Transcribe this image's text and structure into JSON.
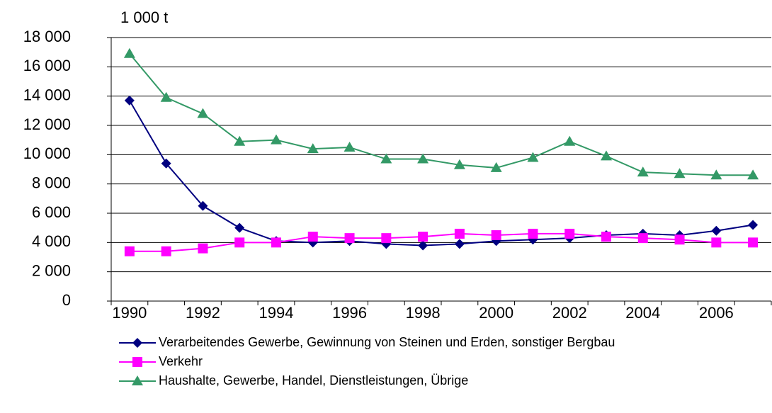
{
  "chart_data": {
    "type": "line",
    "y_axis_label": "1 000 t",
    "categories": [
      "1990",
      null,
      "1992",
      null,
      "1994",
      null,
      "1996",
      null,
      "1998",
      null,
      "2000",
      null,
      "2002",
      null,
      "2004",
      null,
      "2006",
      null
    ],
    "series": [
      {
        "name": "Verarbeitendes Gewerbe, Gewinnung von Steinen und Erden, sonstiger Bergbau",
        "color": "#000080",
        "marker": "diamond",
        "values": [
          13700,
          9400,
          6500,
          5000,
          4100,
          4000,
          4100,
          3900,
          3800,
          3900,
          4100,
          4200,
          4300,
          4500,
          4600,
          4500,
          4800,
          5200
        ]
      },
      {
        "name": "Verkehr",
        "color": "#ff00ff",
        "marker": "square",
        "values": [
          3400,
          3400,
          3600,
          4000,
          4000,
          4400,
          4300,
          4300,
          4400,
          4600,
          4500,
          4600,
          4600,
          4400,
          4300,
          4200,
          4000,
          4000
        ]
      },
      {
        "name": "Haushalte, Gewerbe, Handel, Dienstleistungen, Übrige",
        "color": "#339966",
        "marker": "triangle",
        "values": [
          16900,
          13900,
          12800,
          10900,
          11000,
          10400,
          10500,
          9700,
          9700,
          9300,
          9100,
          9800,
          10900,
          9900,
          8800,
          8700,
          8600,
          8600
        ]
      }
    ],
    "ylim": [
      0,
      18000
    ],
    "yticks": [
      0,
      {
        "value": 2000,
        "label": "2 000"
      },
      {
        "value": 4000,
        "label": "4 000"
      },
      {
        "value": 6000,
        "label": "6 000"
      },
      {
        "value": 8000,
        "label": "8 000"
      },
      {
        "value": 10000,
        "label": "10 000"
      },
      {
        "value": 12000,
        "label": "12 000"
      },
      {
        "value": 14000,
        "label": "14 000"
      },
      {
        "value": 16000,
        "label": "16 000"
      },
      {
        "value": 18000,
        "label": "18 000"
      }
    ],
    "grid": true,
    "legend": "bottom"
  }
}
